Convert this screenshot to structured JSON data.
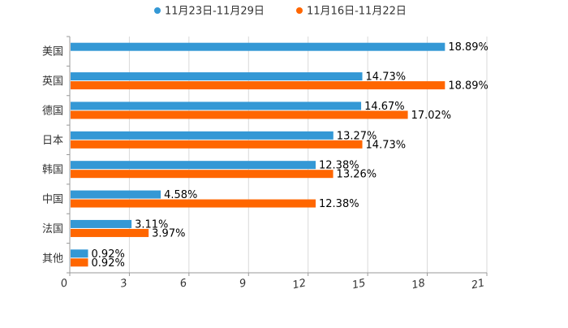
{
  "chart_data": {
    "type": "bar",
    "orientation": "horizontal",
    "categories": [
      "美国",
      "英国",
      "德国",
      "日本",
      "韩国",
      "中国",
      "法国",
      "其他"
    ],
    "series": [
      {
        "name": "11月23日-11月29日",
        "color": "#3498d5",
        "values": [
          18.89,
          14.73,
          14.67,
          13.27,
          12.38,
          4.58,
          3.11,
          0.92
        ],
        "labels": [
          "18.89%",
          "14.73%",
          "14.67%",
          "13.27%",
          "12.38%",
          "4.58%",
          "3.11%",
          "0.92%"
        ]
      },
      {
        "name": "11月16日-11月22日",
        "color": "#ff6600",
        "values": [
          null,
          18.89,
          17.02,
          14.73,
          13.26,
          12.38,
          3.97,
          0.92
        ],
        "labels": [
          "",
          "18.89%",
          "17.02%",
          "14.73%",
          "13.26%",
          "12.38%",
          "3.97%",
          "0.92%"
        ]
      }
    ],
    "xlim": [
      0,
      21
    ],
    "xticks": [
      "0",
      "3",
      "6",
      "9",
      "12",
      "15",
      "18",
      "21"
    ],
    "grid": true,
    "legend_position": "top-center"
  }
}
